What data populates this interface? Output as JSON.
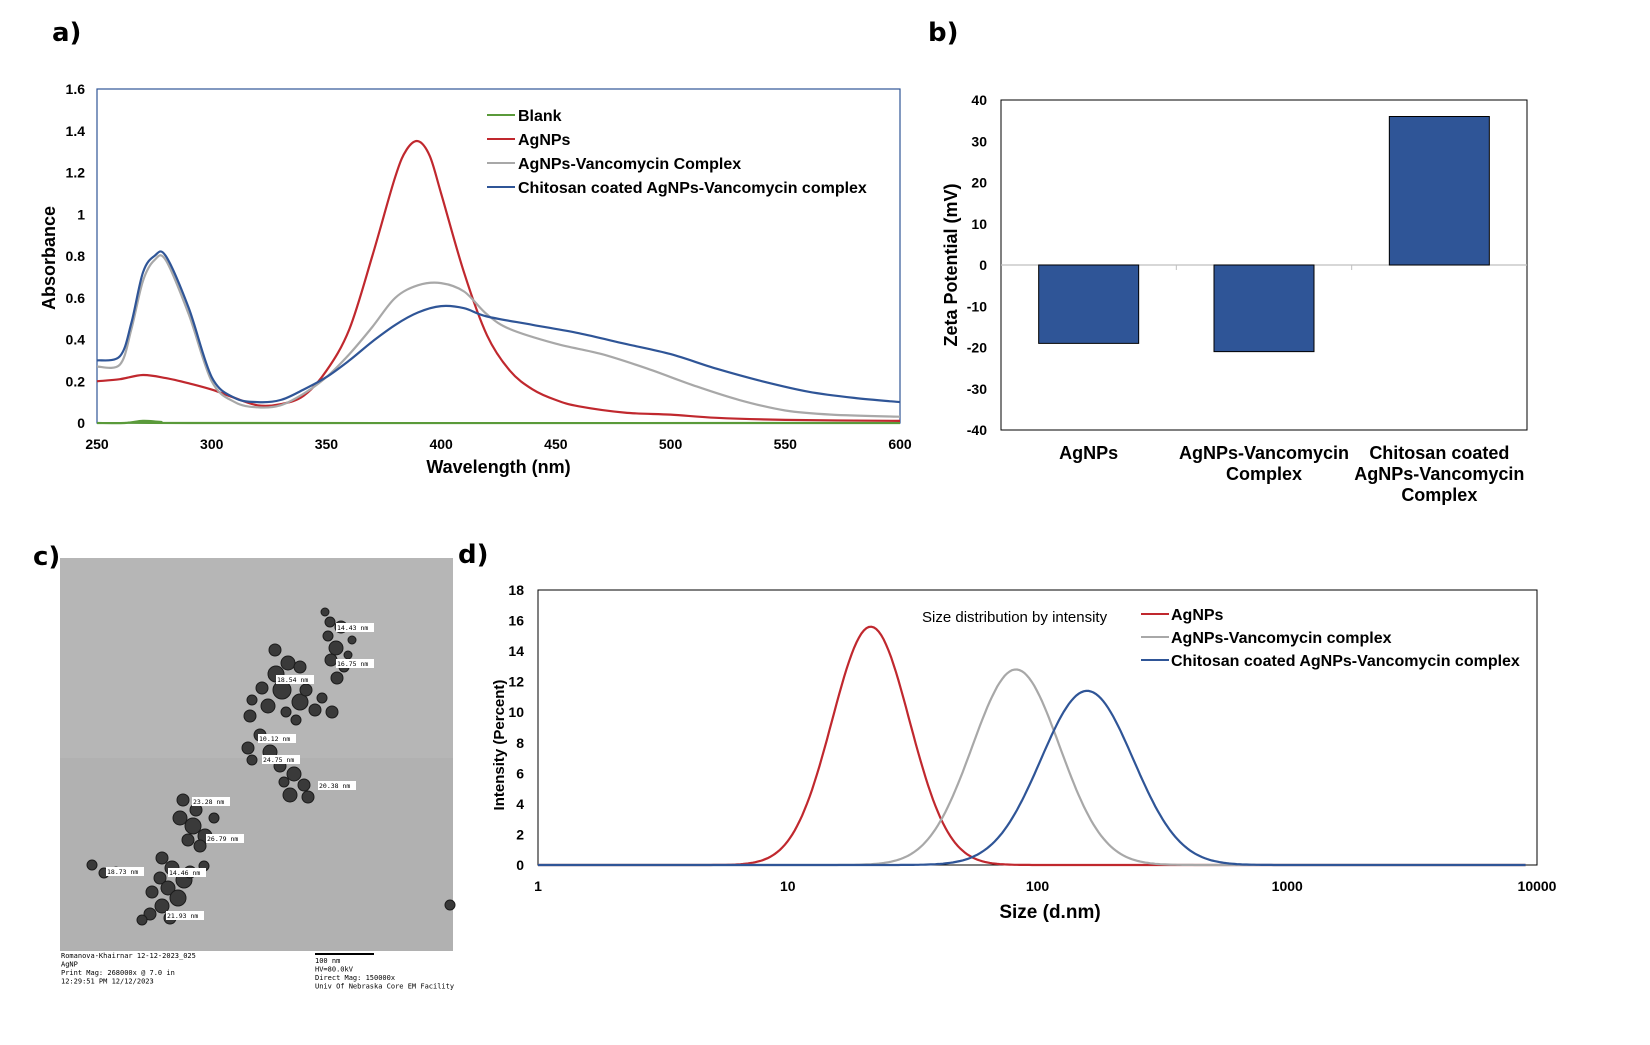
{
  "panel_labels": {
    "a": "a)",
    "b": "b)",
    "c": "c)",
    "d": "d)"
  },
  "chart_data": [
    {
      "panel": "a",
      "type": "line",
      "xlabel": "Wavelength (nm)",
      "ylabel": "Absorbance",
      "xlim": [
        250,
        600
      ],
      "ylim": [
        0,
        1.6
      ],
      "xticks": [
        "250",
        "300",
        "350",
        "400",
        "450",
        "500",
        "550",
        "600"
      ],
      "yticks": [
        "0",
        "0.2",
        "0.4",
        "0.6",
        "0.8",
        "1",
        "1.2",
        "1.4",
        "1.6"
      ],
      "legend_position": "top-right",
      "series": [
        {
          "name": "Blank",
          "color": "#5a9a3a",
          "x": [
            250,
            262,
            270,
            278,
            290,
            600
          ],
          "y": [
            0.0,
            0.0,
            0.01,
            0.005,
            0.0,
            0.0
          ]
        },
        {
          "name": "AgNPs",
          "color": "#c0282e",
          "x": [
            250,
            260,
            270,
            280,
            290,
            300,
            310,
            320,
            330,
            340,
            350,
            360,
            370,
            380,
            385,
            390,
            395,
            400,
            410,
            420,
            430,
            440,
            450,
            460,
            480,
            500,
            520,
            550,
            600
          ],
          "y": [
            0.2,
            0.21,
            0.23,
            0.215,
            0.19,
            0.16,
            0.12,
            0.085,
            0.09,
            0.13,
            0.25,
            0.45,
            0.8,
            1.18,
            1.31,
            1.35,
            1.28,
            1.1,
            0.72,
            0.42,
            0.25,
            0.16,
            0.11,
            0.08,
            0.05,
            0.04,
            0.025,
            0.015,
            0.01
          ]
        },
        {
          "name": "AgNPs-Vancomycin Complex",
          "color": "#a8a8a8",
          "x": [
            250,
            260,
            265,
            270,
            275,
            280,
            290,
            300,
            310,
            320,
            330,
            340,
            350,
            360,
            370,
            380,
            390,
            400,
            410,
            420,
            430,
            450,
            470,
            490,
            510,
            530,
            550,
            570,
            600
          ],
          "y": [
            0.27,
            0.28,
            0.45,
            0.68,
            0.78,
            0.78,
            0.52,
            0.2,
            0.1,
            0.075,
            0.085,
            0.14,
            0.22,
            0.33,
            0.46,
            0.6,
            0.66,
            0.67,
            0.63,
            0.52,
            0.45,
            0.38,
            0.33,
            0.26,
            0.18,
            0.11,
            0.06,
            0.04,
            0.03
          ]
        },
        {
          "name": "Chitosan coated AgNPs-Vancomycin complex",
          "color": "#2f5597",
          "x": [
            250,
            260,
            265,
            270,
            275,
            280,
            290,
            300,
            310,
            320,
            330,
            340,
            350,
            360,
            370,
            380,
            390,
            400,
            410,
            420,
            440,
            460,
            480,
            500,
            520,
            540,
            560,
            580,
            600
          ],
          "y": [
            0.3,
            0.32,
            0.48,
            0.72,
            0.8,
            0.8,
            0.55,
            0.22,
            0.12,
            0.1,
            0.11,
            0.16,
            0.22,
            0.3,
            0.39,
            0.47,
            0.53,
            0.56,
            0.55,
            0.51,
            0.47,
            0.43,
            0.38,
            0.33,
            0.26,
            0.2,
            0.15,
            0.12,
            0.1
          ]
        }
      ]
    },
    {
      "panel": "b",
      "type": "bar",
      "ylabel": "Zeta Potential (mV)",
      "xlabel": "",
      "ylim": [
        -40,
        40
      ],
      "yticks": [
        "40",
        "30",
        "20",
        "10",
        "0",
        "-10",
        "-20",
        "-30",
        "-40"
      ],
      "categories": [
        "AgNPs",
        "AgNPs-Vancomycin Complex",
        "Chitosan coated AgNPs-Vancomycin Complex"
      ],
      "category_lines": [
        [
          "AgNPs"
        ],
        [
          "AgNPs-Vancomycin",
          "Complex"
        ],
        [
          "Chitosan coated",
          "AgNPs-Vancomycin",
          "Complex"
        ]
      ],
      "values": [
        -19,
        -21,
        36
      ],
      "bar_color": "#2f5597"
    },
    {
      "panel": "d",
      "type": "line",
      "title": "Size distribution by intensity",
      "xlabel": "Size (d.nm)",
      "ylabel": "Intensity (Percent)",
      "xscale": "log",
      "xlim": [
        1,
        10000
      ],
      "ylim": [
        0,
        18
      ],
      "xticks": [
        "1",
        "10",
        "100",
        "1000",
        "10000"
      ],
      "yticks": [
        "0",
        "2",
        "4",
        "6",
        "8",
        "10",
        "12",
        "14",
        "16",
        "18"
      ],
      "legend_position": "top-right",
      "series": [
        {
          "name": "AgNPs",
          "color": "#c0282e",
          "peak_x": 21.5,
          "peak_y": 15.6,
          "log_sigma": 0.155,
          "range": [
            1,
            9000
          ]
        },
        {
          "name": "AgNPs-Vancomycin complex",
          "color": "#a8a8a8",
          "peak_x": 82,
          "peak_y": 12.8,
          "log_sigma": 0.175,
          "range": [
            1,
            9000
          ]
        },
        {
          "name": "Chitosan coated AgNPs-Vancomycin complex",
          "color": "#2f5597",
          "peak_x": 158,
          "peak_y": 11.4,
          "log_sigma": 0.185,
          "range": [
            1,
            9000
          ]
        }
      ]
    }
  ],
  "tem_image": {
    "size_labels": [
      "14.43 nm",
      "16.75 nm",
      "18.54 nm",
      "10.12 nm",
      "24.75 nm",
      "20.38 nm",
      "23.28 nm",
      "26.79 nm",
      "18.73 nm",
      "14.46 nm",
      "21.93 nm"
    ],
    "footer_left": [
      "Romanova-Khairnar 12-12-2023_025",
      "AgNP",
      "Print Mag:  268000x @ 7.0 in",
      "12:29:51 PM 12/12/2023"
    ],
    "footer_right": [
      "100 nm",
      "HV=80.0kV",
      "Direct Mag: 150000x",
      "Univ Of Nebraska Core EM Facility"
    ]
  }
}
